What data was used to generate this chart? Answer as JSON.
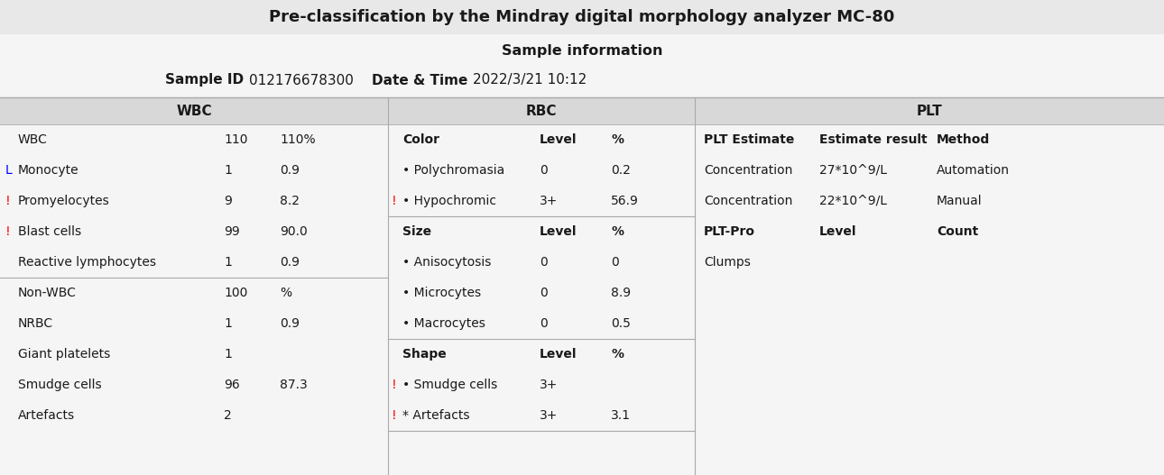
{
  "title": "Pre-classification by the Mindray digital morphology analyzer MC-80",
  "subtitle": "Sample information",
  "sample_id_label": "Sample ID",
  "sample_id_value": "012176678300",
  "datetime_label": "Date & Time",
  "datetime_value": "2022/3/21 10:12",
  "wbc_header": "WBC",
  "rbc_header": "RBC",
  "plt_header": "PLT",
  "title_bg": "#e8e8e8",
  "body_bg": "#f5f5f5",
  "section_hdr_bg": "#d8d8d8",
  "wbc_rows": [
    {
      "flag": "",
      "flag_color": "",
      "name": "WBC",
      "val1": "110",
      "val2": "110%"
    },
    {
      "flag": "L",
      "flag_color": "blue",
      "name": "Monocyte",
      "val1": "1",
      "val2": "0.9"
    },
    {
      "flag": "!",
      "flag_color": "red",
      "name": "Promyelocytes",
      "val1": "9",
      "val2": "8.2"
    },
    {
      "flag": "!",
      "flag_color": "red",
      "name": "Blast cells",
      "val1": "99",
      "val2": "90.0"
    },
    {
      "flag": "",
      "flag_color": "",
      "name": "Reactive lymphocytes",
      "val1": "1",
      "val2": "0.9"
    },
    {
      "flag": "",
      "flag_color": "",
      "name": "Non-WBC",
      "val1": "100",
      "val2": "%"
    },
    {
      "flag": "",
      "flag_color": "",
      "name": "NRBC",
      "val1": "1",
      "val2": "0.9"
    },
    {
      "flag": "",
      "flag_color": "",
      "name": "Giant platelets",
      "val1": "1",
      "val2": ""
    },
    {
      "flag": "",
      "flag_color": "",
      "name": "Smudge cells",
      "val1": "96",
      "val2": "87.3"
    },
    {
      "flag": "",
      "flag_color": "",
      "name": "Artefacts",
      "val1": "2",
      "val2": ""
    }
  ],
  "wbc_separator_after": 4,
  "rbc_sections": [
    {
      "header": [
        "Color",
        "Level",
        "%"
      ],
      "rows": [
        {
          "flag": "",
          "flag_color": "",
          "name": "• Polychromasia",
          "level": "0",
          "pct": "0.2"
        },
        {
          "flag": "!",
          "flag_color": "red",
          "name": "• Hypochromic",
          "level": "3+",
          "pct": "56.9"
        }
      ]
    },
    {
      "header": [
        "Size",
        "Level",
        "%"
      ],
      "rows": [
        {
          "flag": "",
          "flag_color": "",
          "name": "• Anisocytosis",
          "level": "0",
          "pct": "0"
        },
        {
          "flag": "",
          "flag_color": "",
          "name": "• Microcytes",
          "level": "0",
          "pct": "8.9"
        },
        {
          "flag": "",
          "flag_color": "",
          "name": "• Macrocytes",
          "level": "0",
          "pct": "0.5"
        }
      ]
    },
    {
      "header": [
        "Shape",
        "Level",
        "%"
      ],
      "rows": [
        {
          "flag": "!",
          "flag_color": "red",
          "name": "• Smudge cells",
          "level": "3+",
          "pct": ""
        },
        {
          "flag": "!",
          "flag_color": "red",
          "name": "* Artefacts",
          "level": "3+",
          "pct": "3.1"
        }
      ]
    }
  ],
  "plt_estimate_header": [
    "PLT Estimate",
    "Estimate result",
    "Method"
  ],
  "plt_estimate_rows": [
    {
      "col1": "Concentration",
      "col2": "27*10^9/L",
      "col3": "Automation"
    },
    {
      "col1": "Concentration",
      "col2": "22*10^9/L",
      "col3": "Manual"
    }
  ],
  "plt_pro_header": [
    "PLT-Pro",
    "Level",
    "Count"
  ],
  "plt_pro_rows": [
    {
      "col1": "Clumps",
      "col2": "",
      "col3": ""
    }
  ],
  "figw": 12.9,
  "figh": 5.27,
  "dpi": 100
}
